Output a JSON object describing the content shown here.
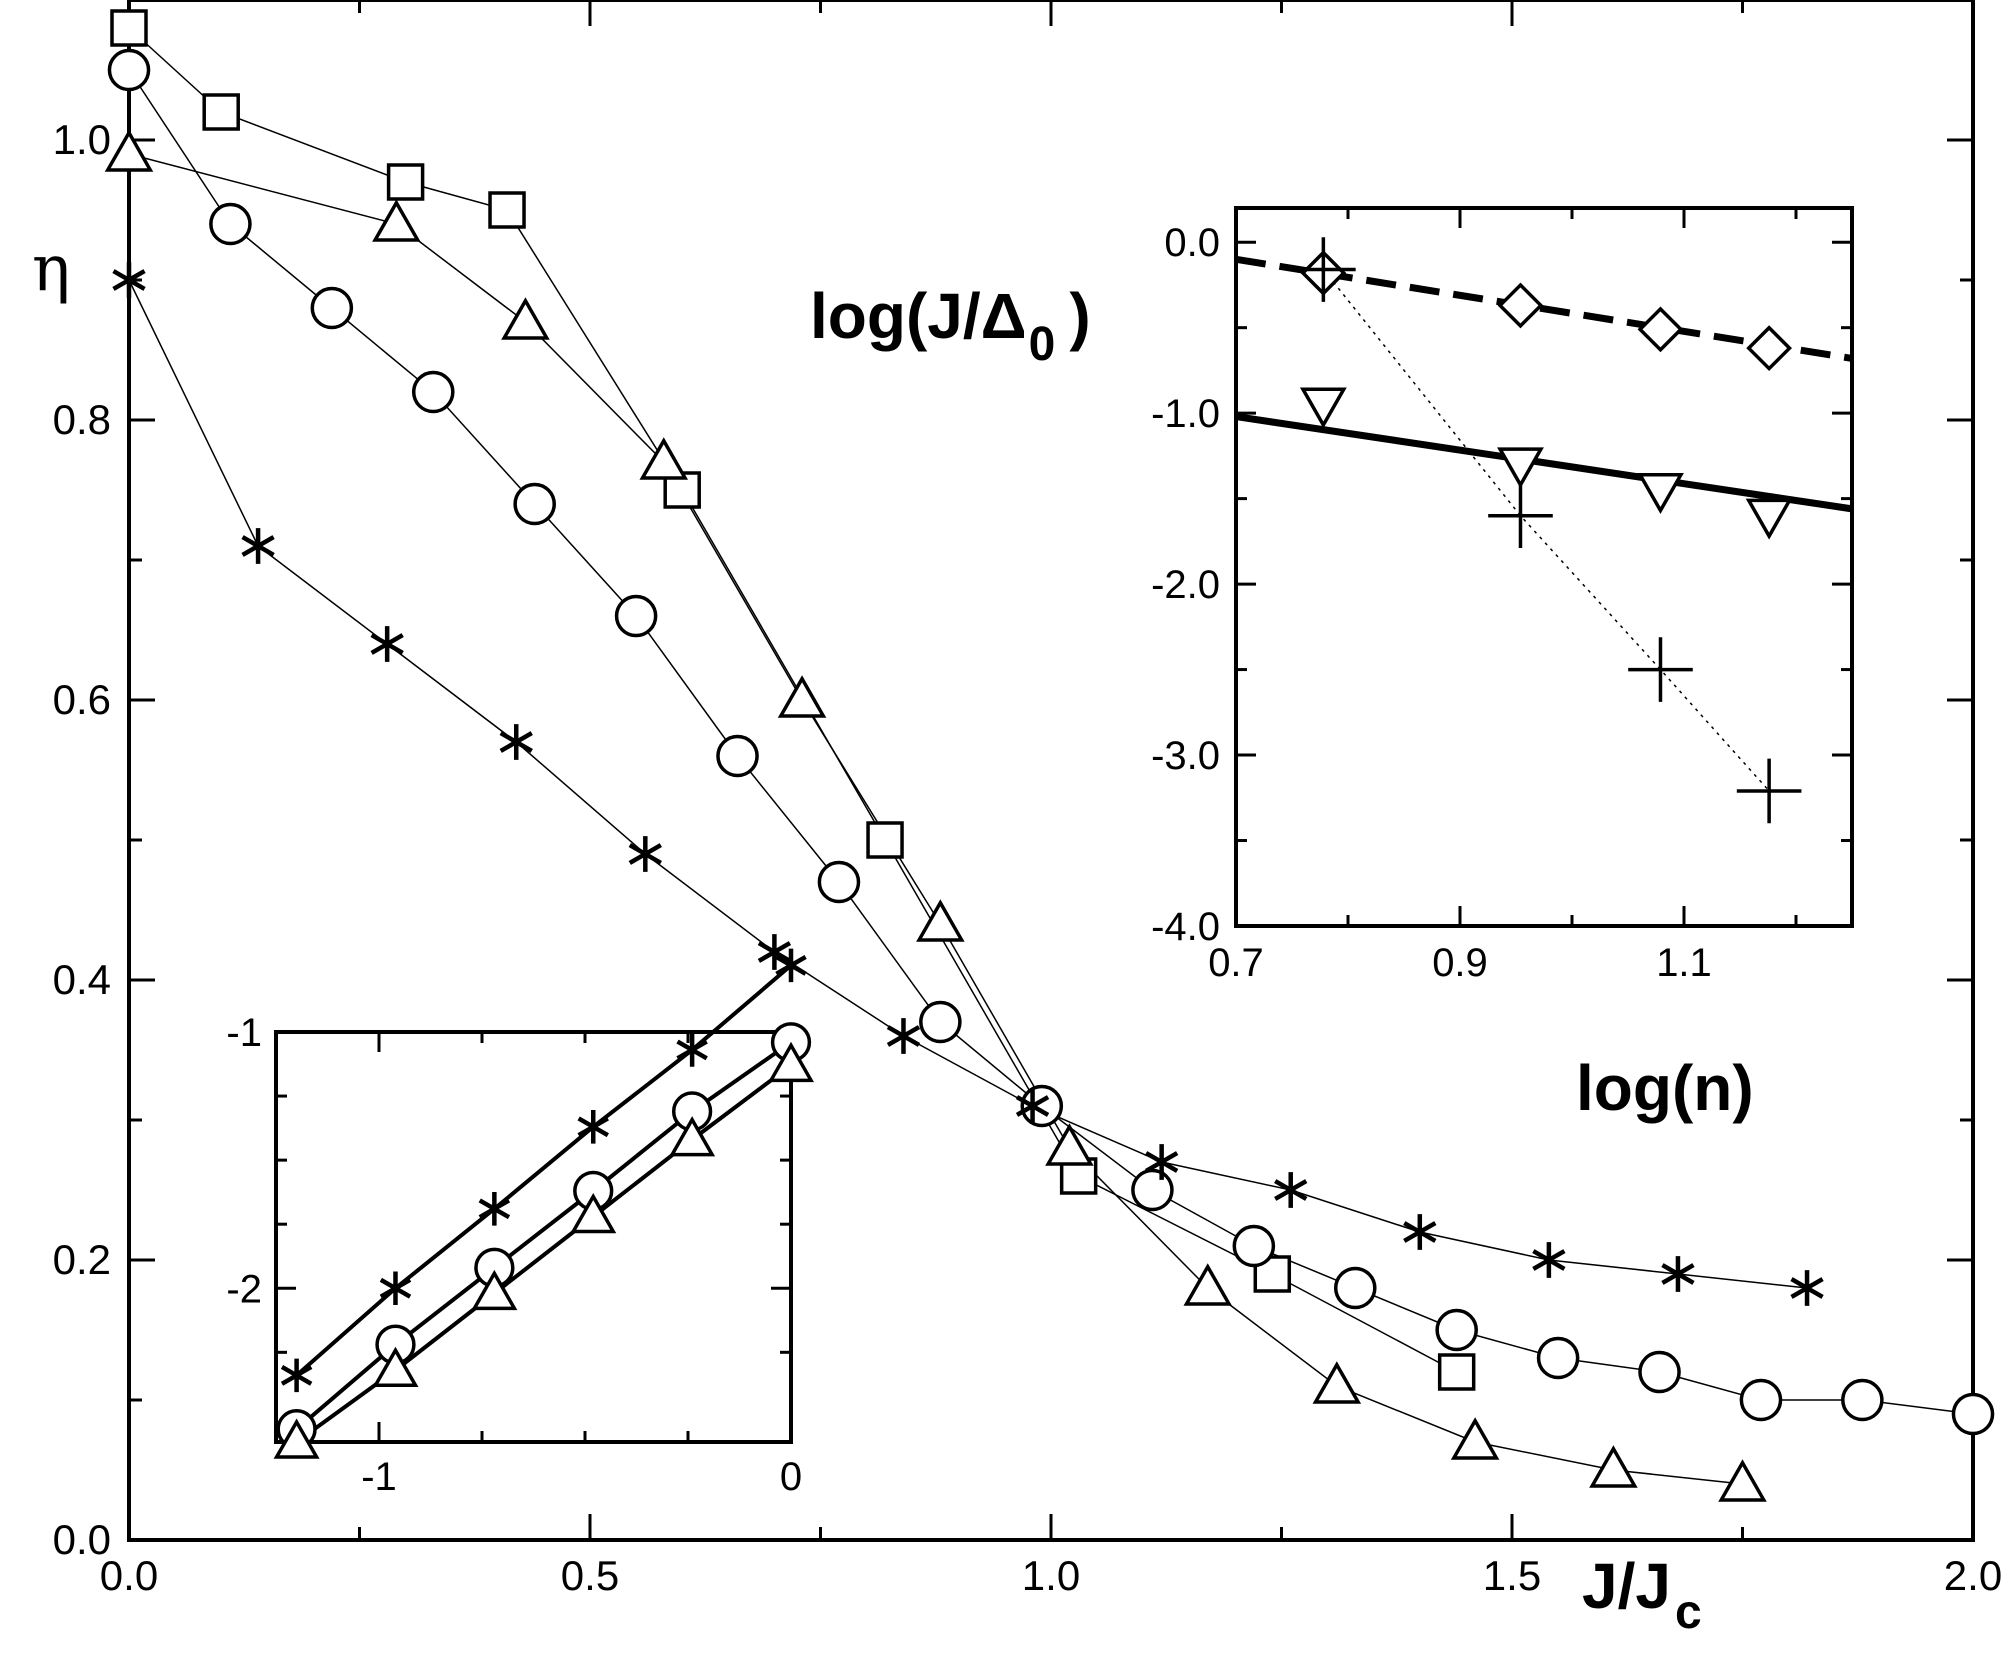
{
  "chart_data": [
    {
      "id": "main",
      "type": "scatter",
      "xlabel": "J/J",
      "xlabel_sub": "c",
      "ylabel": "η",
      "xlim": [
        0,
        2
      ],
      "ylim": [
        0,
        1.1
      ],
      "xticks": [
        "0.0",
        "0.5",
        "1.0",
        "1.5",
        "2.0"
      ],
      "xtick_values": [
        0,
        0.5,
        1.0,
        1.5,
        2.0
      ],
      "yticks": [
        "0.0",
        "0.2",
        "0.4",
        "0.6",
        "0.8",
        "1.0"
      ],
      "ytick_values": [
        0,
        0.2,
        0.4,
        0.6,
        0.8,
        1.0
      ],
      "minor_xticks": [
        0.25,
        0.75,
        1.25,
        1.75
      ],
      "minor_yticks": [
        0.1,
        0.3,
        0.5,
        0.7,
        0.9
      ],
      "grid": false,
      "series": [
        {
          "marker": "square",
          "points": [
            [
              0,
              1.08
            ],
            [
              0.1,
              1.02
            ],
            [
              0.3,
              0.97
            ],
            [
              0.41,
              0.95
            ],
            [
              0.6,
              0.75
            ],
            [
              0.82,
              0.5
            ],
            [
              1.03,
              0.26
            ],
            [
              1.24,
              0.19
            ],
            [
              1.44,
              0.12
            ]
          ]
        },
        {
          "marker": "circle",
          "points": [
            [
              0,
              1.05
            ],
            [
              0.11,
              0.94
            ],
            [
              0.22,
              0.88
            ],
            [
              0.33,
              0.82
            ],
            [
              0.44,
              0.74
            ],
            [
              0.55,
              0.66
            ],
            [
              0.66,
              0.56
            ],
            [
              0.77,
              0.47
            ],
            [
              0.88,
              0.37
            ],
            [
              0.99,
              0.31
            ],
            [
              1.11,
              0.25
            ],
            [
              1.22,
              0.21
            ],
            [
              1.33,
              0.18
            ],
            [
              1.44,
              0.15
            ],
            [
              1.55,
              0.13
            ],
            [
              1.66,
              0.12
            ],
            [
              1.77,
              0.1
            ],
            [
              1.88,
              0.1
            ],
            [
              2.0,
              0.09
            ]
          ]
        },
        {
          "marker": "triangle-up",
          "points": [
            [
              0,
              0.99
            ],
            [
              0.29,
              0.94
            ],
            [
              0.43,
              0.87
            ],
            [
              0.58,
              0.77
            ],
            [
              0.73,
              0.6
            ],
            [
              0.88,
              0.44
            ],
            [
              1.02,
              0.28
            ],
            [
              1.17,
              0.18
            ],
            [
              1.31,
              0.11
            ],
            [
              1.46,
              0.07
            ],
            [
              1.61,
              0.05
            ],
            [
              1.75,
              0.04
            ]
          ]
        },
        {
          "marker": "asterisk",
          "points": [
            [
              0,
              0.9
            ],
            [
              0.14,
              0.71
            ],
            [
              0.28,
              0.64
            ],
            [
              0.42,
              0.57
            ],
            [
              0.56,
              0.49
            ],
            [
              0.7,
              0.42
            ],
            [
              0.84,
              0.36
            ],
            [
              0.98,
              0.31
            ],
            [
              1.12,
              0.27
            ],
            [
              1.26,
              0.25
            ],
            [
              1.4,
              0.22
            ],
            [
              1.54,
              0.2
            ],
            [
              1.68,
              0.19
            ],
            [
              1.82,
              0.18
            ]
          ]
        }
      ]
    },
    {
      "id": "inset_lower_left",
      "type": "line",
      "xlim": [
        -1.25,
        0
      ],
      "ylim": [
        -2.6,
        -1
      ],
      "xticks": [
        "-1",
        "0"
      ],
      "xtick_values": [
        -1,
        0
      ],
      "yticks": [
        "-1",
        "-2"
      ],
      "ytick_values": [
        -1,
        -2
      ],
      "minor_xticks": [
        -0.75,
        -0.5,
        -0.25
      ],
      "minor_yticks": [
        -1.25,
        -1.5,
        -1.75,
        -2.25
      ],
      "series": [
        {
          "marker": "asterisk",
          "points": [
            [
              -1.2,
              -2.34
            ],
            [
              -0.96,
              -2.0
            ],
            [
              -0.72,
              -1.69
            ],
            [
              -0.48,
              -1.37
            ],
            [
              -0.24,
              -1.07
            ],
            [
              0,
              -0.74
            ]
          ]
        },
        {
          "marker": "circle",
          "points": [
            [
              -1.2,
              -2.55
            ],
            [
              -0.96,
              -2.22
            ],
            [
              -0.72,
              -1.92
            ],
            [
              -0.48,
              -1.62
            ],
            [
              -0.24,
              -1.31
            ],
            [
              0,
              -1.04
            ]
          ]
        },
        {
          "marker": "triangle-up",
          "points": [
            [
              -1.2,
              -2.6
            ],
            [
              -0.96,
              -2.32
            ],
            [
              -0.72,
              -2.02
            ],
            [
              -0.48,
              -1.72
            ],
            [
              -0.24,
              -1.42
            ],
            [
              0,
              -1.13
            ]
          ]
        }
      ]
    },
    {
      "id": "inset_upper_right",
      "type": "scatter",
      "xlabel": "log(n)",
      "ylabel": "log(J/Δ",
      "ylabel_sub": "0",
      "ylabel_close": ")",
      "xlim": [
        0.7,
        1.25
      ],
      "ylim": [
        -4,
        0.2
      ],
      "xticks": [
        "0.7",
        "0.9",
        "1.1"
      ],
      "xtick_values": [
        0.7,
        0.9,
        1.1
      ],
      "yticks": [
        "0.0",
        "-1.0",
        "-2.0",
        "-3.0",
        "-4.0"
      ],
      "ytick_values": [
        0,
        -1,
        -2,
        -3,
        -4
      ],
      "minor_xticks": [
        0.8,
        1.0,
        1.2
      ],
      "minor_yticks": [
        -0.5,
        -1.5,
        -2.5,
        -3.5
      ],
      "series": [
        {
          "marker": "diamond",
          "points": [
            [
              0.778,
              -0.18
            ],
            [
              0.954,
              -0.37
            ],
            [
              1.079,
              -0.51
            ],
            [
              1.176,
              -0.62
            ]
          ]
        },
        {
          "marker": "triangle-down",
          "points": [
            [
              0.778,
              -0.95
            ],
            [
              0.954,
              -1.3
            ],
            [
              1.079,
              -1.45
            ],
            [
              1.176,
              -1.6
            ]
          ]
        },
        {
          "marker": "plus",
          "points": [
            [
              0.778,
              -0.16
            ],
            [
              0.954,
              -1.6
            ],
            [
              1.079,
              -2.5
            ],
            [
              1.176,
              -3.21
            ]
          ]
        }
      ],
      "fit_lines": [
        {
          "style": "dashed",
          "x": [
            0.7,
            1.25
          ],
          "y": [
            -0.1,
            -0.68
          ]
        },
        {
          "style": "solid",
          "x": [
            0.7,
            1.25
          ],
          "y": [
            -1.02,
            -1.56
          ]
        }
      ]
    }
  ]
}
